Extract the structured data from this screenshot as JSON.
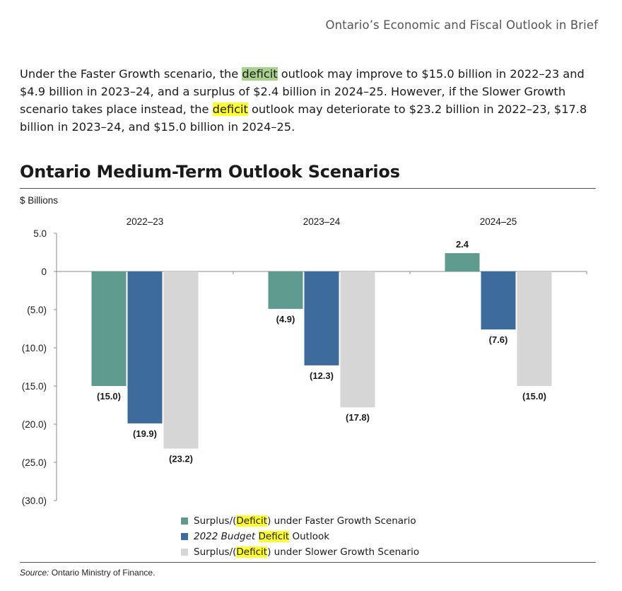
{
  "header": {
    "title": "Ontario’s Economic and Fiscal Outlook in Brief"
  },
  "intro": {
    "p1": "Under the Faster Growth scenario, the ",
    "hl1": "deficit",
    "p2": " outlook may improve to $15.0 billion in 2022–23 and $4.9 billion in 2023–24, and a surplus of $2.4 billion in 2024–25. However, if the Slower Growth scenario takes place instead, the ",
    "hl2": "deficit",
    "p3": " outlook may deteriorate to $23.2 billion in 2022–23, $17.8 billion in 2023–24, and $15.0 billion in 2024–25."
  },
  "chart_title": "Ontario Medium-Term Outlook Scenarios",
  "colors": {
    "faster": "#5f9a8f",
    "budget": "#3d6b9c",
    "slower": "#d6d6d6"
  },
  "chart_data": {
    "type": "bar",
    "ylabel": "$ Billions",
    "categories": [
      "2022–23",
      "2023–24",
      "2024–25"
    ],
    "ylim": [
      -30,
      5
    ],
    "yticks": [
      5,
      0,
      -5,
      -10,
      -15,
      -20,
      -25,
      -30
    ],
    "ytick_labels": [
      "5.0",
      "0",
      "(5.0)",
      "(10.0)",
      "(15.0)",
      "(20.0)",
      "(25.0)",
      "(30.0)"
    ],
    "series": [
      {
        "name": "Surplus/(Deficit) under Faster Growth Scenario",
        "values": [
          -15.0,
          -4.9,
          2.4
        ],
        "labels": [
          "(15.0)",
          "(4.9)",
          "2.4"
        ]
      },
      {
        "name": "2022 Budget Deficit Outlook",
        "values": [
          -19.9,
          -12.3,
          -7.6
        ],
        "labels": [
          "(19.9)",
          "(12.3)",
          "(7.6)"
        ]
      },
      {
        "name": "Surplus/(Deficit) under Slower Growth Scenario",
        "values": [
          -23.2,
          -17.8,
          -15.0
        ],
        "labels": [
          "(23.2)",
          "(17.8)",
          "(15.0)"
        ]
      }
    ],
    "legend_position": "bottom"
  },
  "legend": {
    "items": [
      {
        "pre": "Surplus/(",
        "hl": "Deficit",
        "post": ") under Faster Growth Scenario"
      },
      {
        "pre": "2022 Budget ",
        "hl": "Deficit",
        "post": " Outlook"
      },
      {
        "pre": "Surplus/(",
        "hl": "Deficit",
        "post": ") under Slower Growth Scenario"
      }
    ]
  },
  "source": {
    "label": "Source:",
    "text": " Ontario Ministry of Finance."
  }
}
